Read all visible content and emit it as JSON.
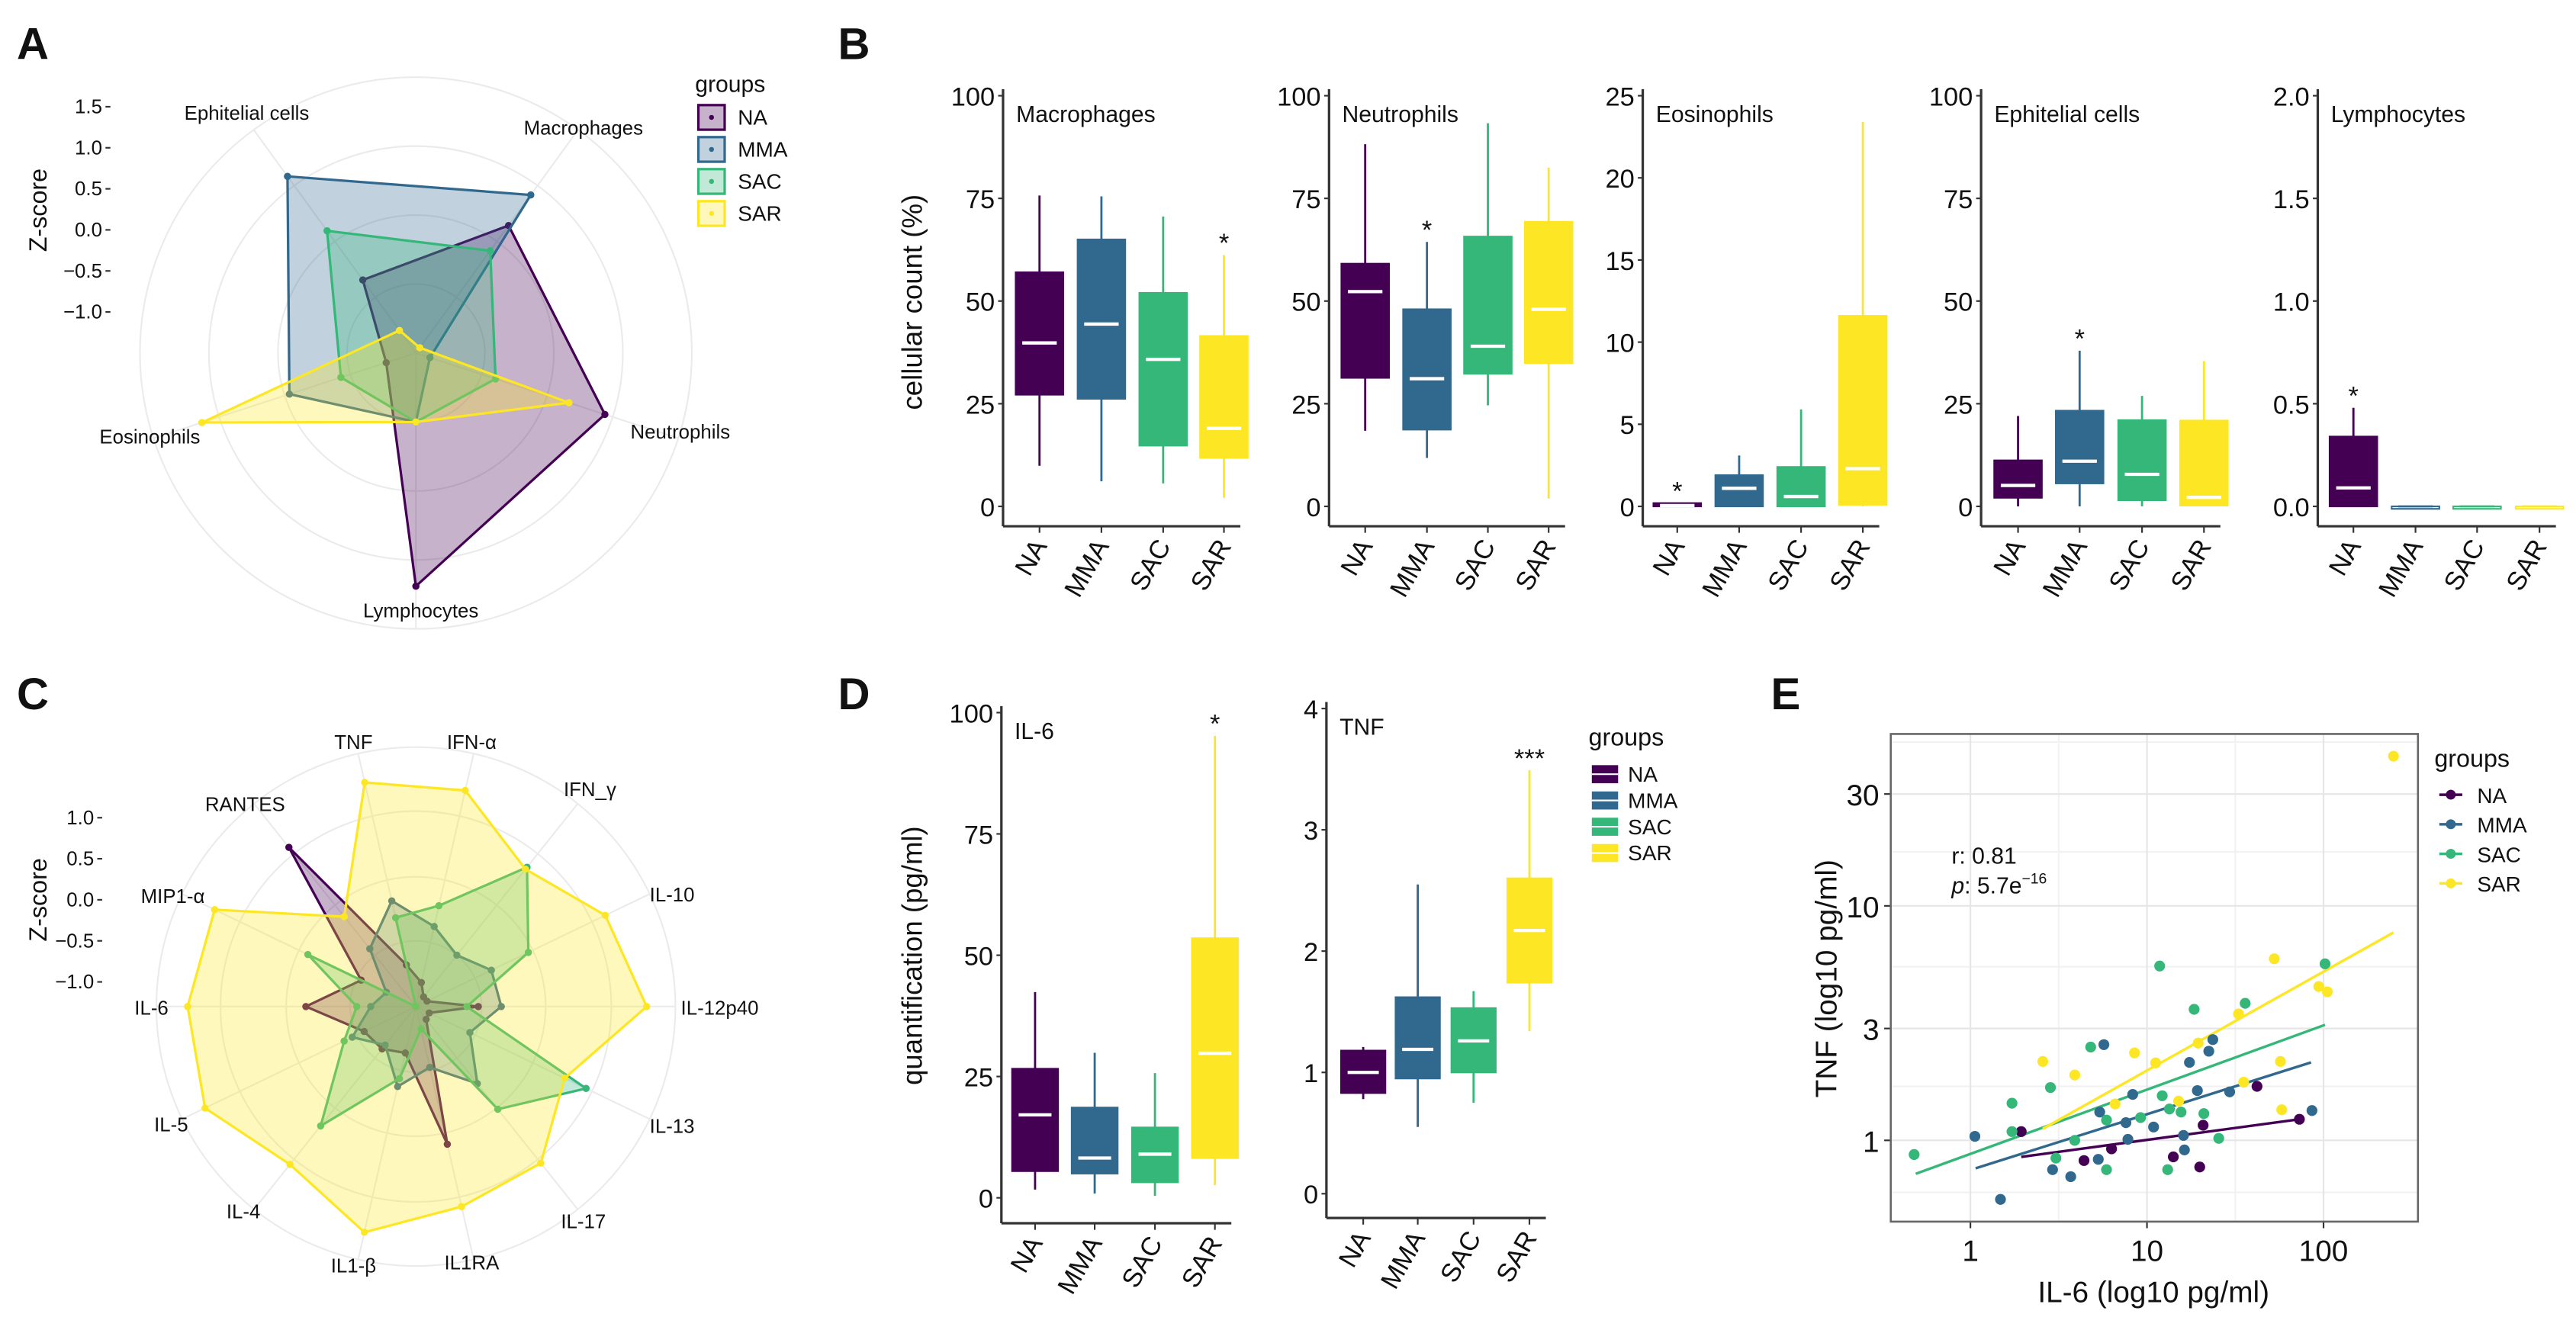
{
  "panel_labels": {
    "A": "A",
    "B": "B",
    "C": "C",
    "D": "D",
    "E": "E"
  },
  "groups": [
    "NA",
    "MMA",
    "SAC",
    "SAR"
  ],
  "colors": {
    "NA": "#440154",
    "MMA": "#31688e",
    "SAC": "#35b779",
    "SAR": "#fde725"
  },
  "chart_data": [
    {
      "panel": "A",
      "type": "radar",
      "ylabel": "Z-score",
      "yticks": [
        "1.5",
        "1.0",
        "0.5",
        "0.0",
        "-0.5",
        "-1.0"
      ],
      "ytick_values": [
        1.5,
        1.0,
        0.5,
        0.0,
        -0.5,
        -1.0
      ],
      "axes": [
        "Macrophages",
        "Neutrophils",
        "Lymphocytes",
        "Eosinophils",
        "Ephitelial cells"
      ],
      "legend_title": "groups",
      "legend_position": "top-right",
      "series": [
        {
          "name": "NA",
          "values": [
            0.42,
            0.92,
            1.34,
            -1.12,
            -0.4
          ]
        },
        {
          "name": "MMA",
          "values": [
            0.88,
            -1.32,
            -0.66,
            0.12,
            1.16
          ]
        },
        {
          "name": "SAC",
          "values": [
            0.04,
            -0.48,
            -0.66,
            -0.54,
            0.34
          ]
        },
        {
          "name": "SAR",
          "values": [
            -1.42,
            0.46,
            -0.66,
            1.24,
            -1.16
          ]
        }
      ]
    },
    {
      "panel": "B",
      "type": "box",
      "ylabel": "cellular count (%)",
      "categories": [
        "NA",
        "MMA",
        "SAC",
        "SAR"
      ],
      "facets": [
        {
          "title": "Macrophages",
          "ylim": [
            0,
            100
          ],
          "yticks": [
            "0",
            "25",
            "50",
            "75",
            "100"
          ],
          "ytick_values": [
            0,
            25,
            50,
            75,
            100
          ],
          "boxes": [
            {
              "group": "NA",
              "min": 9.9,
              "q1": 27.2,
              "median": 39.8,
              "q3": 57.0,
              "max": 75.7
            },
            {
              "group": "MMA",
              "min": 6.1,
              "q1": 26.2,
              "median": 44.4,
              "q3": 65.0,
              "max": 75.5
            },
            {
              "group": "SAC",
              "min": 5.6,
              "q1": 14.8,
              "median": 35.8,
              "q3": 52.0,
              "max": 70.6
            },
            {
              "group": "SAR",
              "min": 2.1,
              "q1": 11.8,
              "median": 19.0,
              "q3": 41.5,
              "max": 61.2
            }
          ],
          "significance": [
            {
              "group": "SAR",
              "label": "*"
            }
          ]
        },
        {
          "title": "Neutrophils",
          "ylim": [
            0,
            100
          ],
          "yticks": [
            "0",
            "25",
            "50",
            "75",
            "100"
          ],
          "ytick_values": [
            0,
            25,
            50,
            75,
            100
          ],
          "boxes": [
            {
              "group": "NA",
              "min": 18.4,
              "q1": 31.3,
              "median": 52.3,
              "q3": 59.1,
              "max": 88.2
            },
            {
              "group": "MMA",
              "min": 11.8,
              "q1": 18.7,
              "median": 31.1,
              "q3": 48.0,
              "max": 64.4
            },
            {
              "group": "SAC",
              "min": 24.6,
              "q1": 32.3,
              "median": 39.0,
              "q3": 65.7,
              "max": 93.3
            },
            {
              "group": "SAR",
              "min": 1.9,
              "q1": 34.9,
              "median": 48.0,
              "q3": 69.3,
              "max": 82.5
            }
          ],
          "significance": [
            {
              "group": "MMA",
              "label": "*"
            }
          ]
        },
        {
          "title": "Eosinophils",
          "ylim": [
            0,
            25
          ],
          "yticks": [
            "0",
            "5",
            "10",
            "15",
            "20",
            "25"
          ],
          "ytick_values": [
            0,
            5,
            10,
            15,
            20,
            25
          ],
          "boxes": [
            {
              "group": "NA",
              "min": 0,
              "q1": 0,
              "median": 0.05,
              "q3": 0.2,
              "max": 0.2
            },
            {
              "group": "MMA",
              "min": 0,
              "q1": 0,
              "median": 1.1,
              "q3": 1.9,
              "max": 3.1
            },
            {
              "group": "SAC",
              "min": 0,
              "q1": 0,
              "median": 0.6,
              "q3": 2.4,
              "max": 5.9
            },
            {
              "group": "SAR",
              "min": 0,
              "q1": 0.1,
              "median": 2.3,
              "q3": 11.6,
              "max": 23.4
            }
          ],
          "significance": [
            {
              "group": "NA",
              "label": "*"
            }
          ]
        },
        {
          "title": "Ephitelial cells",
          "ylim": [
            0,
            100
          ],
          "yticks": [
            "0",
            "25",
            "50",
            "75",
            "100"
          ],
          "ytick_values": [
            0,
            25,
            50,
            75,
            100
          ],
          "boxes": [
            {
              "group": "NA",
              "min": 0,
              "q1": 2.1,
              "median": 5.1,
              "q3": 11.2,
              "max": 22.0
            },
            {
              "group": "MMA",
              "min": 0,
              "q1": 5.6,
              "median": 11.0,
              "q3": 23.3,
              "max": 37.9
            },
            {
              "group": "SAC",
              "min": 0,
              "q1": 1.5,
              "median": 7.8,
              "q3": 21.0,
              "max": 26.9
            },
            {
              "group": "SAR",
              "min": 0,
              "q1": 0.2,
              "median": 2.2,
              "q3": 20.9,
              "max": 35.4
            }
          ],
          "significance": [
            {
              "group": "MMA",
              "label": "*"
            }
          ]
        },
        {
          "title": "Lymphocytes",
          "ylim": [
            0,
            2
          ],
          "yticks": [
            "0.0",
            "0.5",
            "1.0",
            "1.5",
            "2.0"
          ],
          "ytick_values": [
            0,
            0.5,
            1.0,
            1.5,
            2.0
          ],
          "boxes": [
            {
              "group": "NA",
              "min": 0,
              "q1": 0,
              "median": 0.09,
              "q3": 0.34,
              "max": 0.48
            },
            {
              "group": "MMA",
              "min": 0,
              "q1": 0,
              "median": 0,
              "q3": 0,
              "max": 0
            },
            {
              "group": "SAC",
              "min": 0,
              "q1": 0,
              "median": 0,
              "q3": 0,
              "max": 0
            },
            {
              "group": "SAR",
              "min": 0,
              "q1": 0,
              "median": 0,
              "q3": 0,
              "max": 0
            }
          ],
          "significance": [
            {
              "group": "NA",
              "label": "*"
            }
          ]
        }
      ]
    },
    {
      "panel": "C",
      "type": "radar",
      "ylabel": "Z-score",
      "yticks": [
        "1.0",
        "0.5",
        "0.0",
        "-0.5",
        "-1.0"
      ],
      "ytick_values": [
        1.0,
        0.5,
        0.0,
        -0.5,
        -1.0
      ],
      "axes": [
        "TNF",
        "IFN-α",
        "IFN_γ",
        "IL-10",
        "IL-12p40",
        "IL-13",
        "IL-17",
        "IL1RA",
        "IL1-β",
        "IL-4",
        "IL-5",
        "IL-6",
        "MIP1-α",
        "RANTES"
      ],
      "series": [
        {
          "name": "NA",
          "values": [
            -0.78,
            -1.0,
            -1.15,
            -1.15,
            -0.54,
            -1.12,
            -1.1,
            0.42,
            -0.72,
            -0.64,
            -0.6,
            0.04,
            -0.56,
            1.18
          ]
        },
        {
          "name": "MMA",
          "values": [
            0.02,
            -0.3,
            -0.5,
            -0.28,
            -0.26,
            -0.57,
            -0.1,
            -0.54,
            -0.3,
            -0.7,
            -0.44,
            -0.75,
            -0.9,
            -0.4
          ]
        },
        {
          "name": "SAC",
          "values": [
            -0.19,
            -0.04,
            0.87,
            0.22,
            -0.68,
            1.0,
            0.3,
            -1.02,
            -0.4,
            0.56,
            -0.33,
            -0.58,
            0.16,
            -1.3
          ]
        },
        {
          "name": "SAR",
          "values": [
            1.5,
            1.4,
            0.84,
            1.26,
            1.51,
            0.71,
            1.14,
            1.2,
            1.52,
            1.16,
            1.55,
            1.48,
            1.42,
            0.1
          ]
        }
      ]
    },
    {
      "panel": "D",
      "type": "box",
      "ylabel": "quantification (pg/ml)",
      "categories": [
        "NA",
        "MMA",
        "SAC",
        "SAR"
      ],
      "legend_title": "groups",
      "legend_position": "right",
      "facets": [
        {
          "title": "IL-6",
          "ylim": [
            0,
            100
          ],
          "yticks": [
            "0",
            "25",
            "50",
            "75",
            "100"
          ],
          "ytick_values": [
            0,
            25,
            50,
            75,
            100
          ],
          "boxes": [
            {
              "group": "NA",
              "min": 1.7,
              "q1": 5.5,
              "median": 17.1,
              "q3": 26.6,
              "max": 42.4
            },
            {
              "group": "MMA",
              "min": 0.9,
              "q1": 5.0,
              "median": 8.2,
              "q3": 18.6,
              "max": 29.9
            },
            {
              "group": "SAC",
              "min": 0.4,
              "q1": 3.2,
              "median": 9.0,
              "q3": 14.5,
              "max": 25.7
            },
            {
              "group": "SAR",
              "min": 2.6,
              "q1": 8.2,
              "median": 29.8,
              "q3": 53.5,
              "max": 95.2
            }
          ],
          "significance": [
            {
              "group": "SAR",
              "label": "*"
            }
          ]
        },
        {
          "title": "TNF",
          "ylim": [
            0,
            4
          ],
          "yticks": [
            "0",
            "1",
            "2",
            "3",
            "4"
          ],
          "ytick_values": [
            0,
            1,
            2,
            3,
            4
          ],
          "boxes": [
            {
              "group": "NA",
              "min": 0.78,
              "q1": 0.83,
              "median": 1.0,
              "q3": 1.18,
              "max": 1.21
            },
            {
              "group": "MMA",
              "min": 0.55,
              "q1": 0.95,
              "median": 1.19,
              "q3": 1.62,
              "max": 2.55
            },
            {
              "group": "SAC",
              "min": 0.75,
              "q1": 1.0,
              "median": 1.26,
              "q3": 1.53,
              "max": 1.67
            },
            {
              "group": "SAR",
              "min": 1.34,
              "q1": 1.74,
              "median": 2.17,
              "q3": 2.6,
              "max": 3.49
            }
          ],
          "significance": [
            {
              "group": "SAR",
              "label": "***"
            }
          ]
        }
      ]
    },
    {
      "panel": "E",
      "type": "scatter",
      "xlabel": "IL-6 (log10 pg/ml)",
      "ylabel": "TNF (log10 pg/ml)",
      "x_scale": "log10",
      "y_scale": "log10",
      "xticks": [
        "1",
        "10",
        "100"
      ],
      "xtick_values": [
        1,
        10,
        100
      ],
      "yticks": [
        "1",
        "3",
        "10",
        "30"
      ],
      "ytick_values": [
        1,
        3,
        10,
        30
      ],
      "xlim": [
        0.4,
        320
      ],
      "ylim": [
        0.45,
        60
      ],
      "grid": true,
      "annotation": {
        "r_label": "r: 0.81",
        "p_prefix": "p",
        "p_value": ": 5.7e",
        "p_exponent": "-16"
      },
      "legend_title": "groups",
      "legend_position": "right",
      "series": [
        {
          "name": "NA",
          "points": [
            [
              1.94,
              1.09
            ],
            [
              4.4,
              0.82
            ],
            [
              6.3,
              0.92
            ],
            [
              14.1,
              0.85
            ],
            [
              19.9,
              0.77
            ],
            [
              20.8,
              1.16
            ],
            [
              42,
              1.7
            ],
            [
              73,
              1.23
            ]
          ],
          "fit": [
            [
              1.94,
              0.85
            ],
            [
              73,
              1.23
            ]
          ]
        },
        {
          "name": "MMA",
          "points": [
            [
              1.06,
              1.04
            ],
            [
              1.48,
              0.56
            ],
            [
              2.92,
              0.75
            ],
            [
              3.7,
              0.7
            ],
            [
              5.3,
              0.83
            ],
            [
              5.4,
              1.32
            ],
            [
              5.7,
              2.56
            ],
            [
              7.6,
              1.19
            ],
            [
              7.8,
              1.01
            ],
            [
              8.3,
              1.57
            ],
            [
              10.9,
              1.14
            ],
            [
              16.1,
              1.05
            ],
            [
              16.3,
              0.91
            ],
            [
              17.4,
              2.15
            ],
            [
              19.3,
              1.63
            ],
            [
              22.4,
              2.4
            ],
            [
              23.6,
              2.69
            ],
            [
              29.4,
              1.61
            ],
            [
              86,
              1.34
            ]
          ],
          "fit": [
            [
              1.07,
              0.76
            ],
            [
              85,
              2.15
            ]
          ]
        },
        {
          "name": "SAC",
          "points": [
            [
              0.48,
              0.87
            ],
            [
              1.72,
              1.44
            ],
            [
              1.72,
              1.09
            ],
            [
              2.84,
              1.68
            ],
            [
              3.05,
              0.84
            ],
            [
              3.9,
              1.0
            ],
            [
              4.8,
              2.5
            ],
            [
              5.9,
              1.22
            ],
            [
              5.9,
              0.75
            ],
            [
              9.2,
              1.25
            ],
            [
              11.8,
              5.54
            ],
            [
              12.2,
              1.55
            ],
            [
              13.1,
              0.75
            ],
            [
              13.4,
              1.36
            ],
            [
              15.6,
              1.32
            ],
            [
              18.5,
              3.62
            ],
            [
              21,
              1.3
            ],
            [
              25.5,
              1.02
            ],
            [
              36,
              3.84
            ],
            [
              102,
              5.66
            ]
          ],
          "fit": [
            [
              0.49,
              0.72
            ],
            [
              102,
              3.11
            ]
          ]
        },
        {
          "name": "SAR",
          "points": [
            [
              2.57,
              2.17
            ],
            [
              3.9,
              1.9
            ],
            [
              6.6,
              1.43
            ],
            [
              8.5,
              2.36
            ],
            [
              11.2,
              2.14
            ],
            [
              15.1,
              1.47
            ],
            [
              19.5,
              2.6
            ],
            [
              33,
              3.46
            ],
            [
              35.3,
              1.77
            ],
            [
              52.6,
              5.95
            ],
            [
              57,
              2.17
            ],
            [
              58,
              1.35
            ],
            [
              94,
              4.53
            ],
            [
              105,
              4.3
            ],
            [
              249,
              43.5
            ]
          ],
          "fit": [
            [
              2.57,
              1.12
            ],
            [
              249,
              7.7
            ]
          ]
        }
      ]
    }
  ]
}
